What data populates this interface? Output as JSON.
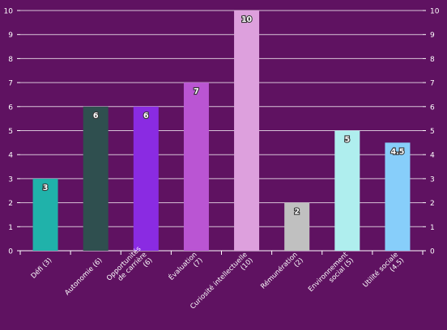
{
  "chart_data": {
    "type": "bar",
    "title": "",
    "xlabel": "",
    "ylabel": "",
    "ylim": [
      0,
      10
    ],
    "y_ticks": [
      0,
      1,
      2,
      3,
      4,
      5,
      6,
      7,
      8,
      9,
      10
    ],
    "grid": true,
    "legend": "none",
    "categories": [
      [
        "Défi (3)"
      ],
      [
        "Autonomie (6)"
      ],
      [
        "Opportunités",
        "de carrière",
        "(6)"
      ],
      [
        "Évaluation",
        "(7)"
      ],
      [
        "Curiosité intellectuelle",
        "(10)"
      ],
      [
        "Rémunération",
        "(2)"
      ],
      [
        "Environnement",
        "social (5)"
      ],
      [
        "Utilité sociale",
        "(4.5)"
      ]
    ],
    "values": [
      3,
      6,
      6,
      7,
      10,
      2,
      5,
      4.5
    ],
    "data_labels": [
      "3",
      "6",
      "6",
      "7",
      "10",
      "2",
      "5",
      "4.5"
    ],
    "colors": [
      "#20b2aa",
      "#2f4f4f",
      "#8a2be2",
      "#ba55d3",
      "#dda0dd",
      "#c0c0c0",
      "#afeeee",
      "#87cefa"
    ],
    "background": "#5f1261",
    "grid_color": "#ffffff",
    "text_color": "#ffffff"
  }
}
